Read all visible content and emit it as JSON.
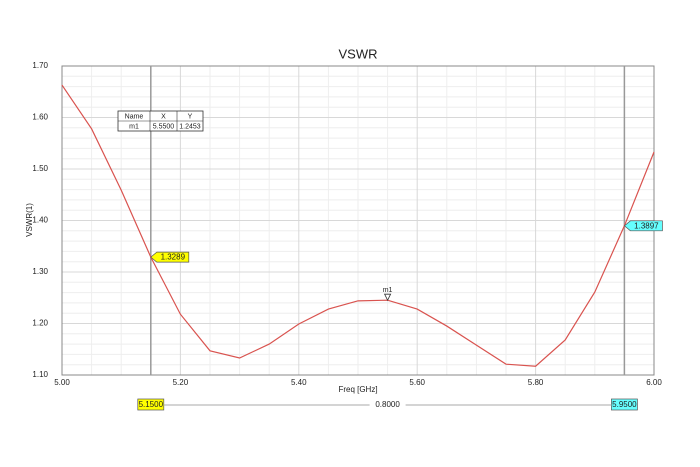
{
  "chart_data": {
    "type": "line",
    "title": "VSWR",
    "x_label": "Freq [GHz]",
    "y_label": "VSWR(1)",
    "x": [
      5.0,
      5.05,
      5.1,
      5.15,
      5.2,
      5.25,
      5.3,
      5.35,
      5.4,
      5.45,
      5.5,
      5.55,
      5.6,
      5.65,
      5.7,
      5.75,
      5.8,
      5.85,
      5.9,
      5.95,
      6.0
    ],
    "values": [
      1.663,
      1.578,
      1.459,
      1.3289,
      1.218,
      1.147,
      1.133,
      1.16,
      1.199,
      1.228,
      1.244,
      1.2453,
      1.228,
      1.195,
      1.158,
      1.121,
      1.117,
      1.168,
      1.261,
      1.3897,
      1.533
    ],
    "color": "#d9534f",
    "xlim": [
      5.0,
      6.0
    ],
    "xticks": [
      {
        "value": 5.0,
        "label": "5.00"
      },
      {
        "value": 5.2,
        "label": "5.20"
      },
      {
        "value": 5.4,
        "label": "5.40"
      },
      {
        "value": 5.6,
        "label": "5.60"
      },
      {
        "value": 5.8,
        "label": "5.80"
      },
      {
        "value": 6.0,
        "label": "6.00"
      }
    ],
    "ylim": [
      1.1,
      1.7
    ],
    "yticks": [
      {
        "value": 1.1,
        "label": "1.10"
      },
      {
        "value": 1.2,
        "label": "1.20"
      },
      {
        "value": 1.3,
        "label": "1.30"
      },
      {
        "value": 1.4,
        "label": "1.40"
      },
      {
        "value": 1.5,
        "label": "1.50"
      },
      {
        "value": 1.6,
        "label": "1.60"
      },
      {
        "value": 1.7,
        "label": "1.70"
      }
    ],
    "grid": true,
    "marker": {
      "name": "m1",
      "x": {
        "value": 5.55,
        "label": "5.5500"
      },
      "y": 1.2453
    },
    "marker_table_headers": [
      "Name",
      "X",
      "Y"
    ],
    "cursors": [
      {
        "x": {
          "value": 5.15,
          "label": "5.1500"
        },
        "y": 1.3289,
        "color": "#ffff00"
      },
      {
        "x": {
          "value": 5.95,
          "label": "5.9500"
        },
        "y": 1.3897,
        "color": "#66ffff"
      }
    ],
    "delta": {
      "value": 0.8,
      "label": "0.8000"
    }
  }
}
